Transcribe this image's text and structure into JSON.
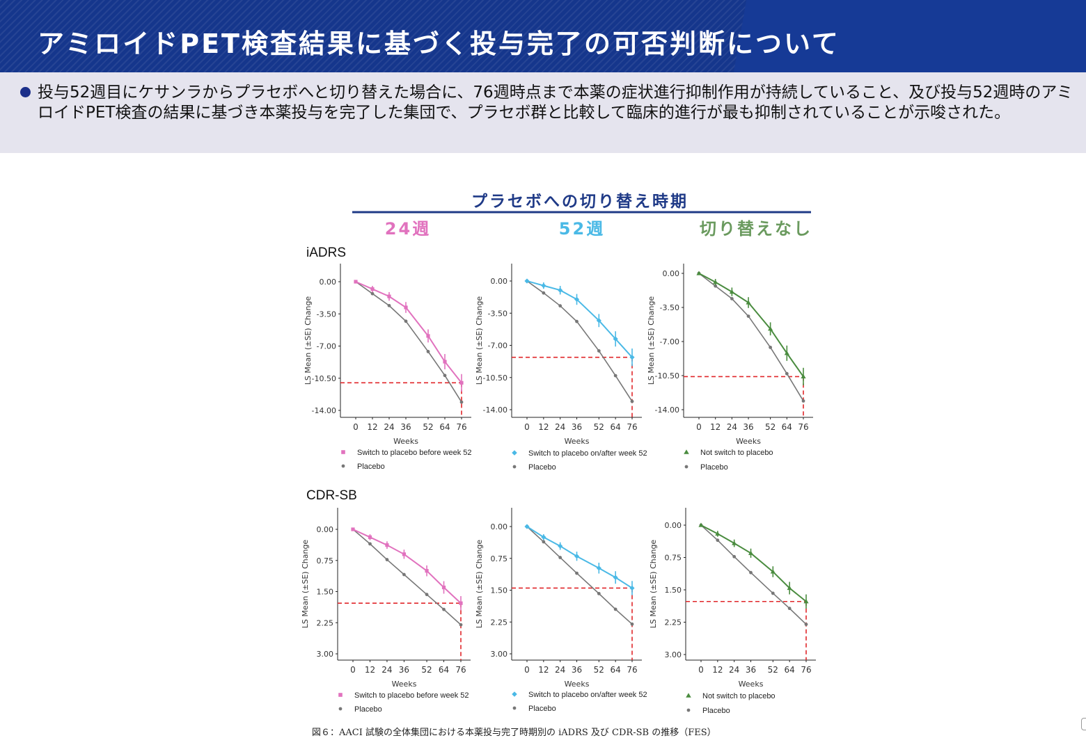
{
  "slide": {
    "title": "アミロイドPET検査結果に基づく投与完了の可否判断について",
    "bullet": "投与52週目にケサンラからプラセボへと切り替えた場合に、76週時点まで本薬の症状進行抑制作用が持続していること、及び投与52週時のアミロイドPET検査の結果に基づき本薬投与を完了した集団で、プラセボ群と比較して臨床的進行が最も抑制されていることが示唆された。",
    "figure_caption": "図６：AACI 試験の全体集団における本薬投与完了時期別の iADRS 及び CDR-SB の推移（FES）"
  },
  "figure": {
    "header": "プラセボへの切り替え時期",
    "columns": [
      "24週",
      "52週",
      "切り替えなし"
    ],
    "row_labels": [
      "iADRS",
      "CDR-SB"
    ],
    "colors": {
      "col1": "#e172be",
      "col2": "#4ab9e6",
      "col3": "#4a8c3f",
      "placebo": "#777777",
      "header": "#1f3a87",
      "refline": "#e0262a"
    }
  },
  "chart_data": [
    {
      "type": "line",
      "row": "iADRS",
      "column": "24週",
      "x": [
        0,
        12,
        24,
        36,
        52,
        64,
        76
      ],
      "xlabel": "Weeks",
      "ylabel": "LS Mean (±SE) Change",
      "yticks": [
        "0.00",
        "-3.50",
        "-7.00",
        "-10.50",
        "-14.00"
      ],
      "ylim": [
        -14,
        0
      ],
      "series": [
        {
          "name": "Switch to placebo before week 52",
          "values": [
            0,
            -0.8,
            -1.6,
            -2.8,
            -5.9,
            -8.7,
            -11.0
          ]
        },
        {
          "name": "Placebo",
          "values": [
            0,
            -1.3,
            -2.6,
            -4.3,
            -7.6,
            -10.2,
            -13.1
          ]
        }
      ],
      "reference_value": -11.0
    },
    {
      "type": "line",
      "row": "iADRS",
      "column": "52週",
      "x": [
        0,
        12,
        24,
        36,
        52,
        64,
        76
      ],
      "xlabel": "Weeks",
      "ylabel": "LS Mean (±SE) Change",
      "yticks": [
        "0.00",
        "-3.50",
        "-7.00",
        "-10.50",
        "-14.00"
      ],
      "ylim": [
        -14,
        0
      ],
      "series": [
        {
          "name": "Switch to placebo on/after week 52",
          "values": [
            0,
            -0.5,
            -1.0,
            -2.0,
            -4.3,
            -6.3,
            -8.3
          ]
        },
        {
          "name": "Placebo",
          "values": [
            0,
            -1.3,
            -2.7,
            -4.4,
            -7.6,
            -10.3,
            -13.1
          ]
        }
      ],
      "reference_value": -8.3
    },
    {
      "type": "line",
      "row": "iADRS",
      "column": "切り替えなし",
      "x": [
        0,
        12,
        24,
        36,
        52,
        64,
        76
      ],
      "xlabel": "Weeks",
      "ylabel": "LS Mean (±SE) Change",
      "yticks": [
        "0.00",
        "-3.50",
        "-7.00",
        "-10.50",
        "-14.00"
      ],
      "ylim": [
        -14,
        0
      ],
      "series": [
        {
          "name": "Not switch to placebo",
          "values": [
            0,
            -0.9,
            -1.9,
            -3.0,
            -5.7,
            -8.2,
            -10.6
          ]
        },
        {
          "name": "Placebo",
          "values": [
            0,
            -1.3,
            -2.6,
            -4.4,
            -7.6,
            -10.3,
            -13.1
          ]
        }
      ],
      "reference_value": -10.6
    },
    {
      "type": "line",
      "row": "CDR-SB",
      "column": "24週",
      "x": [
        0,
        12,
        24,
        36,
        52,
        64,
        76
      ],
      "xlabel": "Weeks",
      "ylabel": "LS Mean (±SE) Change",
      "yticks": [
        "0.00",
        "0.75",
        "1.50",
        "2.25",
        "3.00"
      ],
      "ylim": [
        0,
        3
      ],
      "series": [
        {
          "name": "Switch to placebo before week 52",
          "values": [
            0,
            0.19,
            0.38,
            0.6,
            1.0,
            1.4,
            1.78
          ]
        },
        {
          "name": "Placebo",
          "values": [
            0,
            0.35,
            0.73,
            1.09,
            1.57,
            1.93,
            2.3
          ]
        }
      ],
      "reference_value": 1.78
    },
    {
      "type": "line",
      "row": "CDR-SB",
      "column": "52週",
      "x": [
        0,
        12,
        24,
        36,
        52,
        64,
        76
      ],
      "xlabel": "Weeks",
      "ylabel": "LS Mean (±SE) Change",
      "yticks": [
        "0.00",
        "0.75",
        "1.50",
        "2.25",
        "3.00"
      ],
      "ylim": [
        0,
        3
      ],
      "series": [
        {
          "name": "Switch to placebo on/after week 52",
          "values": [
            0,
            0.25,
            0.46,
            0.7,
            0.98,
            1.2,
            1.45
          ]
        },
        {
          "name": "Placebo",
          "values": [
            0,
            0.36,
            0.73,
            1.1,
            1.58,
            1.95,
            2.3
          ]
        }
      ],
      "reference_value": 1.45
    },
    {
      "type": "line",
      "row": "CDR-SB",
      "column": "切り替えなし",
      "x": [
        0,
        12,
        24,
        36,
        52,
        64,
        76
      ],
      "xlabel": "Weeks",
      "ylabel": "LS Mean (±SE) Change",
      "yticks": [
        "0.00",
        "0.75",
        "1.50",
        "2.25",
        "3.00"
      ],
      "ylim": [
        0,
        3
      ],
      "series": [
        {
          "name": "Not switch to placebo",
          "values": [
            0,
            0.2,
            0.42,
            0.65,
            1.08,
            1.46,
            1.77
          ]
        },
        {
          "name": "Placebo",
          "values": [
            0,
            0.35,
            0.73,
            1.1,
            1.58,
            1.93,
            2.3
          ]
        }
      ],
      "reference_value": 1.77
    }
  ]
}
